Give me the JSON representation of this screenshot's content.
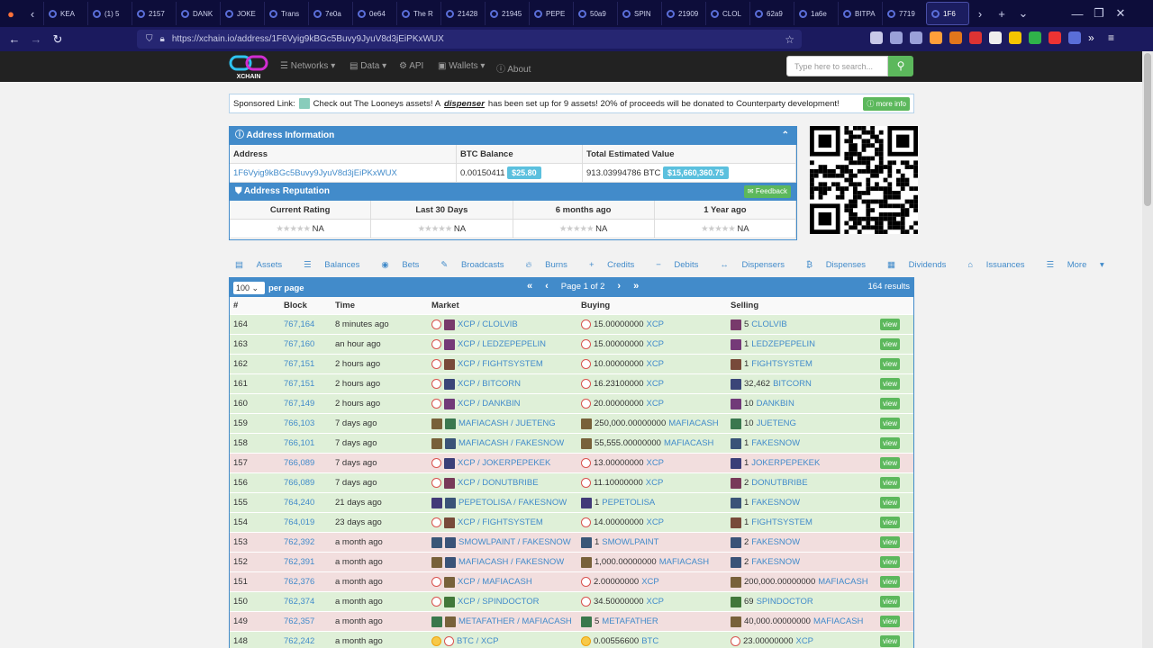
{
  "browser": {
    "tabs": [
      "KEA",
      "(1) 5",
      "2157",
      "DANK",
      "JOKE",
      "Trans",
      "7e0a",
      "0e64",
      "The R",
      "21428",
      "21945",
      "PEPE",
      "50a9",
      "SPIN",
      "21909",
      "CLOL",
      "62a9",
      "1a6e",
      "BITPA",
      "7719",
      "1F6"
    ],
    "url": "https://xchain.io/address/1F6Vyig9kBGc5Buvy9JyuV8d3jEiPKxWUX"
  },
  "site": {
    "logo": "XCHAIN",
    "nav": [
      "Networks",
      "Data",
      "API",
      "Wallets",
      "About"
    ],
    "search_placeholder": "Type here to search..."
  },
  "sponsor": {
    "label": "Sponsored Link:",
    "text1": "Check out The Looneys assets! A",
    "text_em": "dispenser",
    "text2": "has been set up for 9 assets! 20% of proceeds will be donated to Counterparty development!",
    "button": "more info"
  },
  "address_info": {
    "title": "Address Information",
    "headers": [
      "Address",
      "BTC Balance",
      "Total Estimated Value"
    ],
    "address": "1F6Vyig9kBGc5Buvy9JyuV8d3jEiPKxWUX",
    "btc_balance": "0.00150411",
    "btc_usd": "$25.80",
    "total": "913.03994786 BTC",
    "total_usd": "$15,660,360.75"
  },
  "reputation": {
    "title": "Address Reputation",
    "feedback": "Feedback",
    "headers": [
      "Current Rating",
      "Last 30 Days",
      "6 months ago",
      "1 Year ago"
    ],
    "values": [
      "NA",
      "NA",
      "NA",
      "NA"
    ]
  },
  "tabs": [
    "Assets",
    "Balances",
    "Bets",
    "Broadcasts",
    "Burns",
    "Credits",
    "Debits",
    "Dispensers",
    "Dispenses",
    "Dividends",
    "Issuances",
    "More"
  ],
  "table": {
    "per_page": "100",
    "per_page_label": "per page",
    "page": "Page 1 of 2",
    "results": "164 results",
    "headers": [
      "#",
      "Block",
      "Time",
      "Market",
      "Buying",
      "Selling"
    ],
    "view_label": "view",
    "rows": [
      {
        "n": "164",
        "block": "767,164",
        "time": "8 minutes ago",
        "market": "XCP / CLOLVIB",
        "buy_amt": "15.00000000",
        "buy_asset": "XCP",
        "sell_amt": "5",
        "sell_asset": "CLOLVIB",
        "status": "g"
      },
      {
        "n": "163",
        "block": "767,160",
        "time": "an hour ago",
        "market": "XCP / LEDZEPEPELIN",
        "buy_amt": "15.00000000",
        "buy_asset": "XCP",
        "sell_amt": "1",
        "sell_asset": "LEDZEPEPELIN",
        "status": "g"
      },
      {
        "n": "162",
        "block": "767,151",
        "time": "2 hours ago",
        "market": "XCP / FIGHTSYSTEM",
        "buy_amt": "10.00000000",
        "buy_asset": "XCP",
        "sell_amt": "1",
        "sell_asset": "FIGHTSYSTEM",
        "status": "g"
      },
      {
        "n": "161",
        "block": "767,151",
        "time": "2 hours ago",
        "market": "XCP / BITCORN",
        "buy_amt": "16.23100000",
        "buy_asset": "XCP",
        "sell_amt": "32,462",
        "sell_asset": "BITCORN",
        "status": "g"
      },
      {
        "n": "160",
        "block": "767,149",
        "time": "2 hours ago",
        "market": "XCP / DANKBIN",
        "buy_amt": "20.00000000",
        "buy_asset": "XCP",
        "sell_amt": "10",
        "sell_asset": "DANKBIN",
        "status": "g"
      },
      {
        "n": "159",
        "block": "766,103",
        "time": "7 days ago",
        "market": "MAFIACASH / JUETENG",
        "buy_amt": "250,000.00000000",
        "buy_asset": "MAFIACASH",
        "sell_amt": "10",
        "sell_asset": "JUETENG",
        "status": "g"
      },
      {
        "n": "158",
        "block": "766,101",
        "time": "7 days ago",
        "market": "MAFIACASH / FAKESNOW",
        "buy_amt": "55,555.00000000",
        "buy_asset": "MAFIACASH",
        "sell_amt": "1",
        "sell_asset": "FAKESNOW",
        "status": "g"
      },
      {
        "n": "157",
        "block": "766,089",
        "time": "7 days ago",
        "market": "XCP / JOKERPEPEKEK",
        "buy_amt": "13.00000000",
        "buy_asset": "XCP",
        "sell_amt": "1",
        "sell_asset": "JOKERPEPEKEK",
        "status": "r"
      },
      {
        "n": "156",
        "block": "766,089",
        "time": "7 days ago",
        "market": "XCP / DONUTBRIBE",
        "buy_amt": "11.10000000",
        "buy_asset": "XCP",
        "sell_amt": "2",
        "sell_asset": "DONUTBRIBE",
        "status": "g"
      },
      {
        "n": "155",
        "block": "764,240",
        "time": "21 days ago",
        "market": "PEPETOLISA / FAKESNOW",
        "buy_amt": "1",
        "buy_asset": "PEPETOLISA",
        "sell_amt": "1",
        "sell_asset": "FAKESNOW",
        "status": "g"
      },
      {
        "n": "154",
        "block": "764,019",
        "time": "23 days ago",
        "market": "XCP / FIGHTSYSTEM",
        "buy_amt": "14.00000000",
        "buy_asset": "XCP",
        "sell_amt": "1",
        "sell_asset": "FIGHTSYSTEM",
        "status": "g"
      },
      {
        "n": "153",
        "block": "762,392",
        "time": "a month ago",
        "market": "SMOWLPAINT / FAKESNOW",
        "buy_amt": "1",
        "buy_asset": "SMOWLPAINT",
        "sell_amt": "2",
        "sell_asset": "FAKESNOW",
        "status": "r"
      },
      {
        "n": "152",
        "block": "762,391",
        "time": "a month ago",
        "market": "MAFIACASH / FAKESNOW",
        "buy_amt": "1,000.00000000",
        "buy_asset": "MAFIACASH",
        "sell_amt": "2",
        "sell_asset": "FAKESNOW",
        "status": "r"
      },
      {
        "n": "151",
        "block": "762,376",
        "time": "a month ago",
        "market": "XCP / MAFIACASH",
        "buy_amt": "2.00000000",
        "buy_asset": "XCP",
        "sell_amt": "200,000.00000000",
        "sell_asset": "MAFIACASH",
        "status": "r"
      },
      {
        "n": "150",
        "block": "762,374",
        "time": "a month ago",
        "market": "XCP / SPINDOCTOR",
        "buy_amt": "34.50000000",
        "buy_asset": "XCP",
        "sell_amt": "69",
        "sell_asset": "SPINDOCTOR",
        "status": "g"
      },
      {
        "n": "149",
        "block": "762,357",
        "time": "a month ago",
        "market": "METAFATHER / MAFIACASH",
        "buy_amt": "5",
        "buy_asset": "METAFATHER",
        "sell_amt": "40,000.00000000",
        "sell_asset": "MAFIACASH",
        "status": "r"
      },
      {
        "n": "148",
        "block": "762,242",
        "time": "a month ago",
        "market": "BTC / XCP",
        "buy_amt": "0.00556600",
        "buy_asset": "BTC",
        "sell_amt": "23.00000000",
        "sell_asset": "XCP",
        "status": "g"
      }
    ]
  }
}
